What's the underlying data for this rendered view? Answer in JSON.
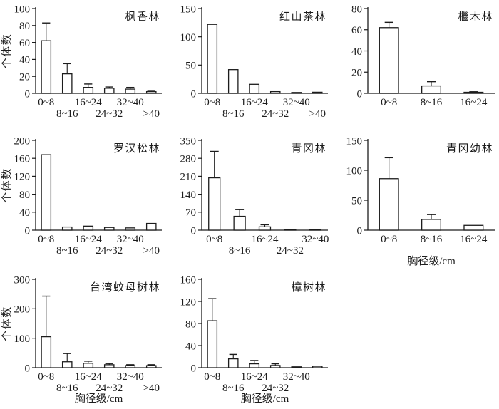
{
  "figure": {
    "background": "#ffffff",
    "ink_color": "#1c1c1c",
    "bar_fill": "#ffffff",
    "ylabel": "个体数",
    "xlabel": "胸径级/cm"
  },
  "chart_data": [
    {
      "type": "bar",
      "title": "枫香林",
      "categories": [
        "0~8",
        "8~16",
        "16~24",
        "24~32",
        "32~40",
        ">40"
      ],
      "values": [
        62,
        23,
        7,
        6,
        5,
        2
      ],
      "errors_plus": [
        21,
        12,
        4,
        1.5,
        2,
        0.5
      ],
      "ylim": [
        0,
        100
      ],
      "ytick_step": 20,
      "show_ylabel": true,
      "show_xlabel": false
    },
    {
      "type": "bar",
      "title": "红山茶林",
      "categories": [
        "0~8",
        "8~16",
        "16~24",
        "24~32",
        "32~40",
        ">40"
      ],
      "values": [
        122,
        42,
        16,
        3,
        1,
        2
      ],
      "errors_plus": [
        0,
        0,
        0,
        0,
        0,
        0
      ],
      "ylim": [
        0,
        150
      ],
      "ytick_step": 50,
      "show_ylabel": false,
      "show_xlabel": false
    },
    {
      "type": "bar",
      "title": "檵木林",
      "categories": [
        "0~8",
        "8~16",
        "16~24"
      ],
      "values": [
        62,
        7,
        1
      ],
      "errors_plus": [
        5,
        4,
        0.5
      ],
      "ylim": [
        0,
        80
      ],
      "ytick_step": 20,
      "show_ylabel": false,
      "show_xlabel": false
    },
    {
      "type": "bar",
      "title": "罗汉松林",
      "categories": [
        "0~8",
        "8~16",
        "16~24",
        "24~32",
        "32~40",
        ">40"
      ],
      "values": [
        168,
        7,
        9,
        6,
        5,
        15
      ],
      "errors_plus": [
        0,
        0,
        0,
        0,
        0,
        0
      ],
      "ylim": [
        0,
        200
      ],
      "ytick_step": 40,
      "show_ylabel": true,
      "show_xlabel": false
    },
    {
      "type": "bar",
      "title": "青冈林",
      "categories": [
        "0~8",
        "8~16",
        "16~24",
        "24~32",
        "32~40"
      ],
      "values": [
        204,
        54,
        13,
        3,
        2
      ],
      "errors_plus": [
        103,
        26,
        8,
        0,
        0
      ],
      "ylim": [
        0,
        350
      ],
      "ytick_step": 70,
      "show_ylabel": false,
      "show_xlabel": false
    },
    {
      "type": "bar",
      "title": "青冈幼林",
      "categories": [
        "0~8",
        "8~16",
        "16~24"
      ],
      "values": [
        86,
        18,
        8
      ],
      "errors_plus": [
        35,
        8,
        0
      ],
      "ylim": [
        0,
        150
      ],
      "ytick_step": 50,
      "show_ylabel": false,
      "show_xlabel": true
    },
    {
      "type": "bar",
      "title": "台湾蚊母树林",
      "categories": [
        "0~8",
        "8~16",
        "16~24",
        "24~32",
        "32~40",
        ">40"
      ],
      "values": [
        105,
        20,
        15,
        10,
        7,
        7
      ],
      "errors_plus": [
        138,
        28,
        7,
        4,
        3,
        3
      ],
      "ylim": [
        0,
        300
      ],
      "ytick_step": 100,
      "show_ylabel": true,
      "show_xlabel": true
    },
    {
      "type": "bar",
      "title": "樟树林",
      "categories": [
        "0~8",
        "8~16",
        "16~24",
        "24~32",
        "32~40",
        ""
      ],
      "values": [
        85,
        16,
        7,
        4,
        1.5,
        2.5
      ],
      "errors_plus": [
        40,
        8,
        6,
        3,
        0,
        0
      ],
      "ylim": [
        0,
        160
      ],
      "ytick_step": 40,
      "show_ylabel": false,
      "show_xlabel": true
    }
  ]
}
